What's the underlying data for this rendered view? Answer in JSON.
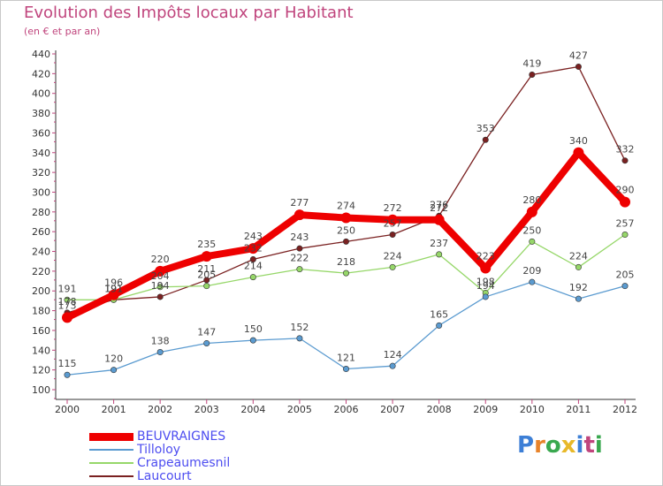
{
  "title": "Evolution des Impôts locaux par Habitant",
  "subtitle": "(en € et par an)",
  "logo": {
    "text": "Proxiti",
    "colors": [
      "#3d7fd6",
      "#e8832a",
      "#3aa84f",
      "#e8b92a",
      "#3d7fd6",
      "#c0457d",
      "#3aa84f"
    ]
  },
  "chart_data": {
    "type": "line",
    "x": [
      "2000",
      "2001",
      "2002",
      "2003",
      "2004",
      "2005",
      "2006",
      "2007",
      "2008",
      "2009",
      "2010",
      "2011",
      "2012"
    ],
    "ylim": [
      100,
      440
    ],
    "yticks": [
      100,
      120,
      140,
      160,
      180,
      200,
      220,
      240,
      260,
      280,
      300,
      320,
      340,
      360,
      380,
      400,
      420,
      440
    ],
    "grid": false,
    "legend_position": "bottom-left",
    "series": [
      {
        "name": "BEUVRAIGNES",
        "color": "#ee0000",
        "values": [
          173,
          196,
          220,
          235,
          243,
          277,
          274,
          272,
          272,
          223,
          280,
          340,
          290
        ]
      },
      {
        "name": "Tilloloy",
        "color": "#5b9bd0",
        "values": [
          115,
          120,
          138,
          147,
          150,
          152,
          121,
          124,
          165,
          194,
          209,
          192,
          205
        ]
      },
      {
        "name": "Crapeaumesnil",
        "color": "#96d769",
        "values": [
          191,
          191,
          204,
          205,
          214,
          222,
          218,
          224,
          237,
          198,
          250,
          224,
          257
        ]
      },
      {
        "name": "Laucourt",
        "color": "#7a2121",
        "values": [
          178,
          191,
          194,
          211,
          232,
          243,
          250,
          257,
          276,
          353,
          419,
          427,
          332
        ]
      }
    ]
  }
}
